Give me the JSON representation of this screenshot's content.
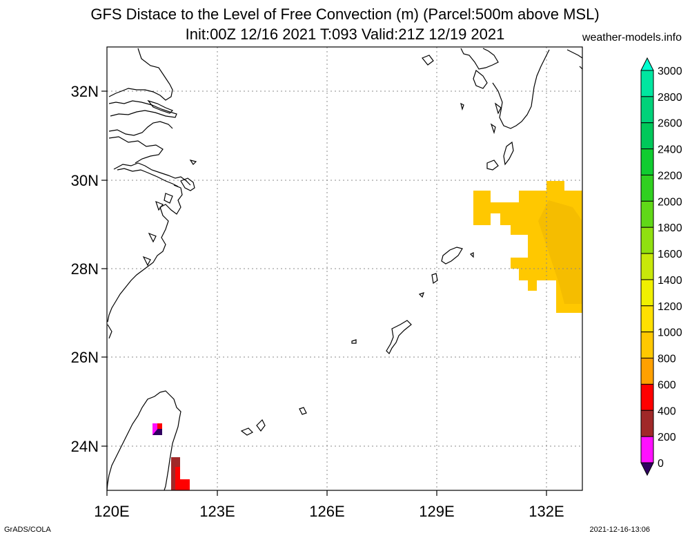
{
  "header": {
    "title_line1": "GFS Distace to the Level of Free Convection (m) (Parcel:500m above MSL)",
    "title_line2": "Init:00Z 12/16 2021 T:093 Valid:21Z 12/19 2021",
    "site": "weather-models.info"
  },
  "footer": {
    "left": "GrADS/COLA",
    "right": "2021-12-16-13:06"
  },
  "map": {
    "lon_ticks": [
      "120E",
      "123E",
      "126E",
      "129E",
      "132E"
    ],
    "lat_ticks": [
      "32N",
      "30N",
      "28N",
      "26N",
      "24N"
    ]
  },
  "colorbar": {
    "levels": [
      "3000",
      "2800",
      "2600",
      "2400",
      "2200",
      "2000",
      "1800",
      "1600",
      "1400",
      "1200",
      "1000",
      "800",
      "600",
      "400",
      "200",
      "0"
    ],
    "colors": [
      "#00ffd0",
      "#00e6a0",
      "#00d27a",
      "#00c85a",
      "#10cc30",
      "#30d020",
      "#60d818",
      "#90e010",
      "#c8e80a",
      "#f0f000",
      "#ffe000",
      "#ffc800",
      "#ffa000",
      "#ff0000",
      "#a02828",
      "#ff10ff",
      "#5010a0",
      "#300060"
    ]
  }
}
